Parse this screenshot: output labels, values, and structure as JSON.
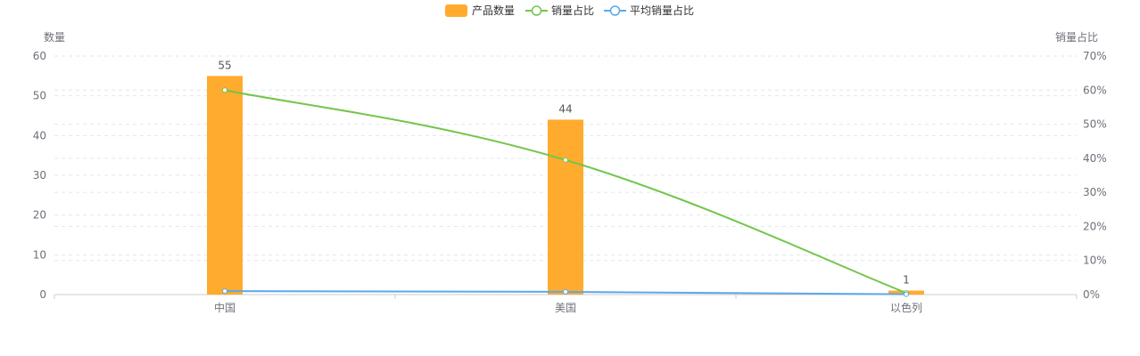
{
  "chart_data": {
    "type": "bar",
    "categories": [
      "中国",
      "美国",
      "以色列"
    ],
    "series": [
      {
        "name": "产品数量",
        "kind": "bar",
        "axis": "left",
        "values": [
          55,
          44,
          1
        ],
        "color": "#ffab2e"
      },
      {
        "name": "销量占比",
        "kind": "line",
        "axis": "right",
        "values": [
          60,
          39.5,
          0.5
        ],
        "color": "#72c64a"
      },
      {
        "name": "平均销量占比",
        "kind": "line",
        "axis": "right",
        "values": [
          1,
          0.8,
          0.1
        ],
        "color": "#5aa9ea"
      }
    ],
    "y_left": {
      "label": "数量",
      "min": 0,
      "max": 60,
      "ticks": [
        "0",
        "10",
        "20",
        "30",
        "40",
        "50",
        "60"
      ]
    },
    "y_right": {
      "label": "销量占比",
      "min": 0,
      "max": 70,
      "ticks": [
        "0%",
        "10%",
        "20%",
        "30%",
        "40%",
        "50%",
        "60%",
        "70%"
      ]
    },
    "data_labels": [
      "55",
      "44",
      "1"
    ],
    "legend_position": "top-center",
    "grid": "dashed horizontal"
  }
}
